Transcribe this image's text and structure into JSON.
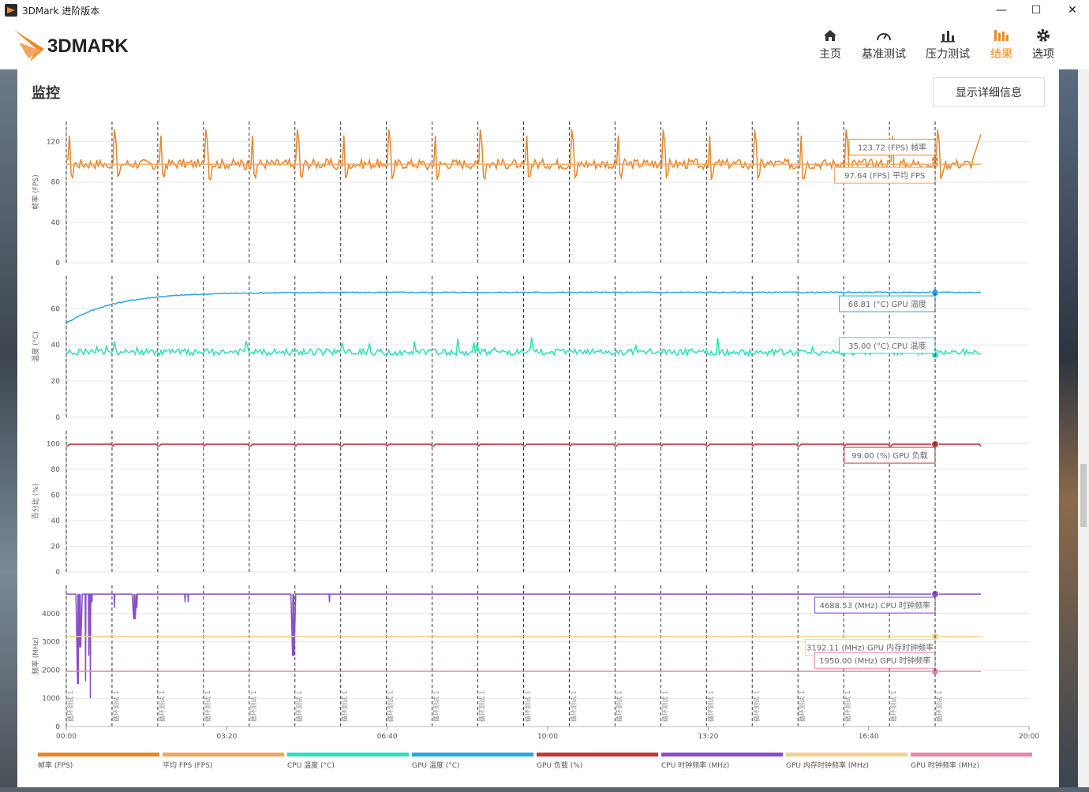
{
  "window": {
    "title": "3DMark 进阶版本",
    "minimize_label": "—",
    "maximize_label": "☐",
    "close_label": "✕"
  },
  "app": {
    "logo_text": "3DMARK"
  },
  "nav": [
    {
      "label": "主页",
      "icon": "home-icon"
    },
    {
      "label": "基准测试",
      "icon": "gauge-icon"
    },
    {
      "label": "压力测试",
      "icon": "bar-chart-icon"
    },
    {
      "label": "结果",
      "icon": "results-icon",
      "active": true
    },
    {
      "label": "选项",
      "icon": "gear-icon"
    }
  ],
  "colors": {
    "accent": "#f08a24",
    "fps": "#e8862a",
    "avg_fps": "#f4a460",
    "cpu_temp": "#2de0b8",
    "gpu_temp": "#2aa8e0",
    "gpu_load": "#c0393b",
    "cpu_clock": "#8a4fc8",
    "gpu_mem_clock": "#f0d090",
    "gpu_clock": "#e888a8"
  },
  "panel": {
    "title": "监控",
    "detail_button": "显示详细信息"
  },
  "chart_data": {
    "type": "line",
    "x_ticks": [
      "00:00",
      "03:20",
      "06:40",
      "10:00",
      "13:20",
      "16:40",
      "20:00"
    ],
    "x_range_sec": [
      0,
      1200
    ],
    "loop_marker_label": "循环测试 1",
    "loop_marker_seconds": [
      0,
      57,
      114,
      171,
      228,
      285,
      342,
      399,
      456,
      513,
      570,
      627,
      684,
      741,
      798,
      855,
      912,
      969,
      1026,
      1083
    ],
    "end_seconds": 1140,
    "panels": [
      {
        "ylabel": "帧率 (FPS)",
        "ylim": [
          0,
          140
        ],
        "yticks": [
          "0",
          "40",
          "80",
          "120"
        ],
        "series": [
          {
            "name": "帧率 (FPS)",
            "tag": "123.72 (FPS) 帧率",
            "pattern": "fps",
            "avg": 98,
            "peak": 132,
            "low": 82,
            "end": 127
          },
          {
            "name": "平均 FPS (FPS)",
            "tag": "97.64 (FPS) 平均 FPS",
            "pattern": "flat",
            "value": 97.64
          }
        ]
      },
      {
        "ylabel": "温度 (°C)",
        "ylim": [
          0,
          78
        ],
        "yticks": [
          "0",
          "20",
          "40",
          "60"
        ],
        "series": [
          {
            "name": "GPU 温度 (°C)",
            "tag": "68.81 (°C) GPU 温度",
            "pattern": "warmup",
            "start": 52,
            "value": 69
          },
          {
            "name": "CPU 温度 (°C)",
            "tag": "35.00 (°C) CPU 温度",
            "pattern": "noise",
            "value": 36,
            "end": 35
          }
        ]
      },
      {
        "ylabel": "百分比 (%)",
        "ylim": [
          0,
          110
        ],
        "yticks": [
          "0",
          "20",
          "40",
          "60",
          "80",
          "100"
        ],
        "series": [
          {
            "name": "GPU 负载 (%)",
            "tag": "99.00 (%) GPU 负载",
            "pattern": "load",
            "value": 99.5,
            "dip": 98
          }
        ]
      },
      {
        "ylabel": "频率 (MHz)",
        "ylim": [
          0,
          5000
        ],
        "yticks": [
          "0",
          "1000",
          "2000",
          "3000",
          "4000"
        ],
        "series": [
          {
            "name": "CPU 时钟频率 (MHz)",
            "tag": "4688.53 (MHz) CPU 时钟频率",
            "pattern": "cpu_clock",
            "value": 4690,
            "dips": [
              [
                15,
                1500
              ],
              [
                17,
                2800
              ],
              [
                24,
                1600
              ],
              [
                28,
                2500
              ],
              [
                30,
                1000
              ],
              [
                32,
                4400
              ],
              [
                60,
                4200
              ],
              [
                85,
                3800
              ],
              [
                88,
                4200
              ],
              [
                148,
                4400
              ],
              [
                152,
                4400
              ],
              [
                283,
                2500
              ],
              [
                328,
                4400
              ]
            ]
          },
          {
            "name": "GPU 内存时钟频率 (MHz)",
            "tag": "3192.11 (MHz) GPU 内存时钟频率",
            "pattern": "flat",
            "value": 3192
          },
          {
            "name": "GPU 时钟频率 (MHz)",
            "tag": "1950.00 (MHz) GPU 时钟频率",
            "pattern": "flat",
            "value": 1950
          }
        ]
      }
    ],
    "legend": [
      "帧率 (FPS)",
      "平均 FPS (FPS)",
      "CPU 温度 (°C)",
      "GPU 温度 (°C)",
      "GPU 负载 (%)",
      "CPU 时钟频率 (MHz)",
      "GPU 内存时钟频率 (MHz)",
      "GPU 时钟频率 (MHz)"
    ]
  }
}
